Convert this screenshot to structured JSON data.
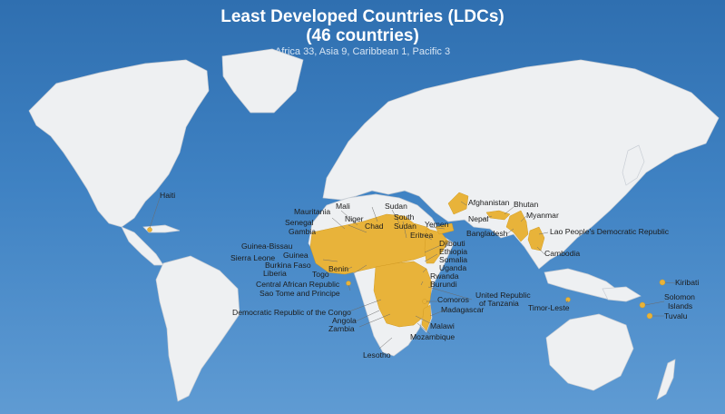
{
  "title": "Least Developed Countries (LDCs)",
  "title_line2": "(46 countries)",
  "subtitle": "Africa 33, Asia 9, Caribbean 1, Pacific 3",
  "colors": {
    "ocean": "#3f82c3",
    "land": "#eef0f2",
    "ldc_fill": "#e8b33a"
  },
  "labels": {
    "haiti": "Haiti",
    "mauritania": "Mauritania",
    "mali": "Mali",
    "senegal": "Senegal",
    "gambia": "Gambia",
    "niger": "Niger",
    "chad": "Chad",
    "sudan": "Sudan",
    "south_sudan": "South",
    "south_sudan_2": "Sudan",
    "yemen": "Yemen",
    "eritrea": "Eritrea",
    "djibouti": "Djibouti",
    "ethiopia": "Ethiopia",
    "somalia": "Somalia",
    "uganda": "Uganda",
    "rwanda": "Rwanda",
    "burundi": "Burundi",
    "guinea_bissau": "Guinea-Bissau",
    "sierra_leone": "Sierra Leone",
    "guinea": "Guinea",
    "burkina_faso": "Burkina Faso",
    "liberia": "Liberia",
    "togo": "Togo",
    "benin": "Benin",
    "car": "Central African Republic",
    "sao_tome": "Sao Tome and Principe",
    "drc": "Democratic Republic of the Congo",
    "angola": "Angola",
    "zambia": "Zambia",
    "comoros": "Comoros",
    "tanzania": "United Republic",
    "tanzania_2": "of Tanzania",
    "madagascar": "Madagascar",
    "malawi": "Malawi",
    "mozambique": "Mozambique",
    "lesotho": "Lesotho",
    "afghanistan": "Afghanistan",
    "nepal": "Nepal",
    "bhutan": "Bhutan",
    "myanmar": "Myanmar",
    "bangladesh": "Bangladesh",
    "lao": "Lao People's Democratic Republic",
    "cambodia": "Cambodia",
    "timor_leste": "Timor-Leste",
    "kiribati": "Kiribati",
    "solomon": "Solomon",
    "solomon_2": "Islands",
    "tuvalu": "Tuvalu"
  }
}
